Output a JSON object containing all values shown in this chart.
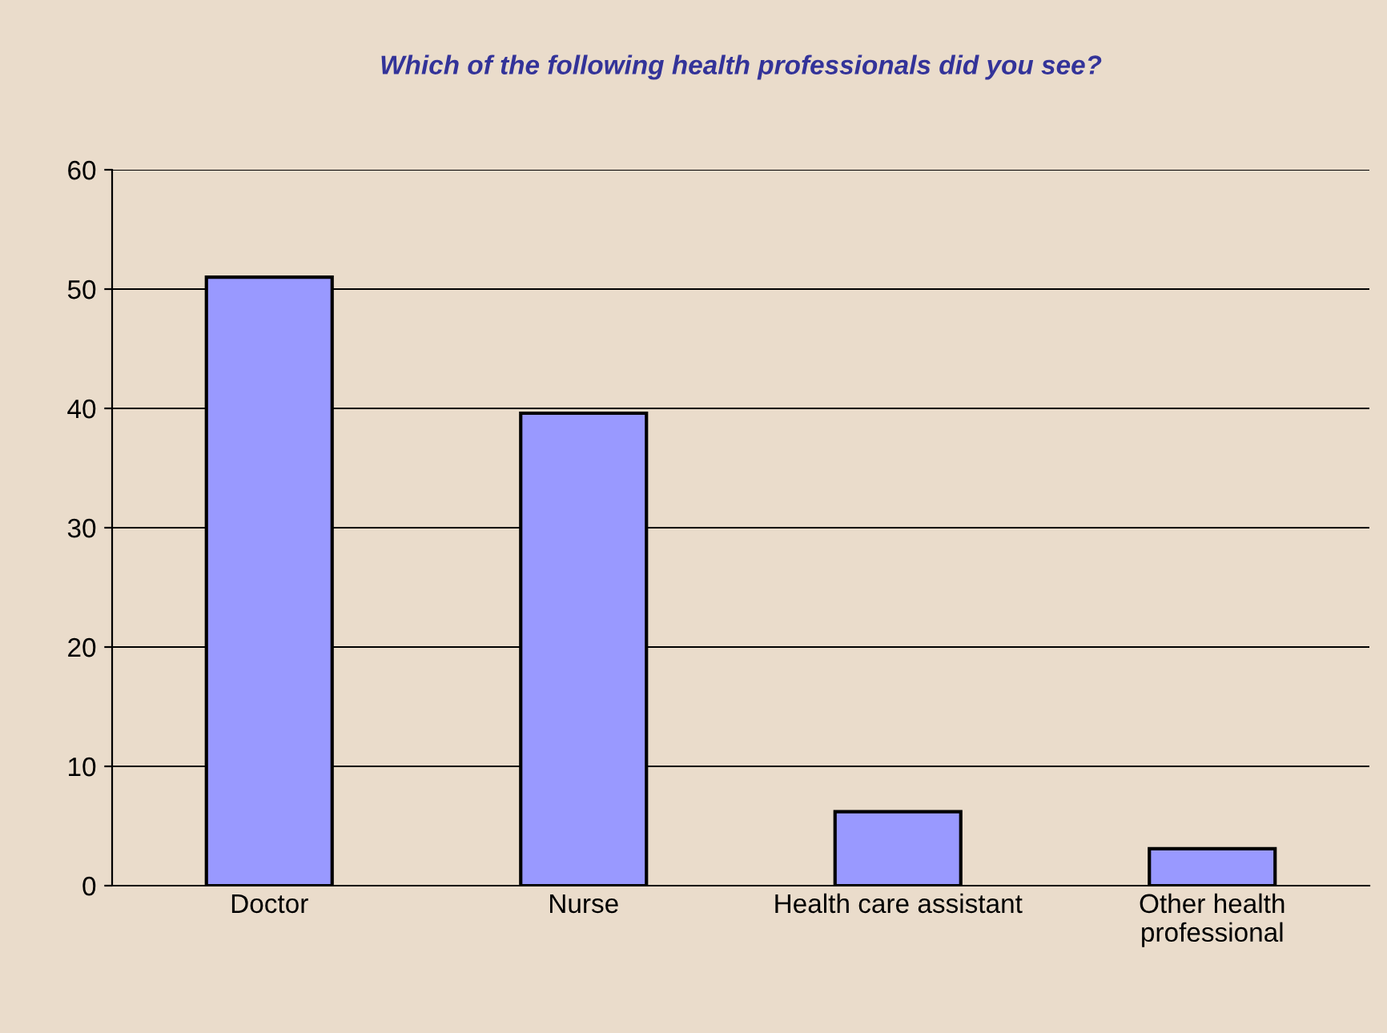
{
  "chart_data": {
    "type": "bar",
    "title": "Which of the following health professionals did you see?",
    "categories": [
      "Doctor",
      "Nurse",
      "Health care assistant",
      "Other health\nprofessional"
    ],
    "values": [
      51,
      39.6,
      6.2,
      3.1
    ],
    "color": "#9999ff",
    "ylim": [
      0,
      60
    ],
    "yticks": [
      0,
      10,
      20,
      30,
      40,
      50,
      60
    ],
    "grid": "y",
    "legend": false
  }
}
